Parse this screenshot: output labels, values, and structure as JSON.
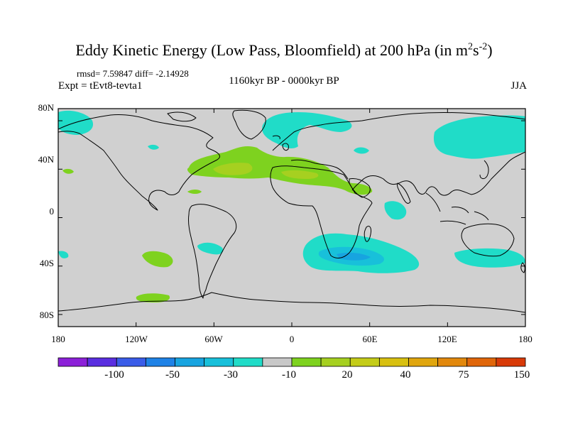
{
  "title": "Eddy Kinetic Energy (Low Pass, Bloomfield) at 200 hPa (in m",
  "title_units": {
    "sup1": "2",
    "mid": "s",
    "sup2": "-2",
    "close": ")"
  },
  "stats": "rmsd= 7.59847 diff= -2.14928",
  "experiment": "Expt = tEvt8-tevta1",
  "period": "1160kyr BP - 0000kyr BP",
  "season": "JJA",
  "map": {
    "projection": "cylindrical equidistant",
    "lat_range": [
      -90,
      90
    ],
    "lon_range": [
      -180,
      180
    ],
    "background_color": "#d0d0d0",
    "lat_labels": [
      "80N",
      "40N",
      "0",
      "40S",
      "80S"
    ],
    "lon_labels": [
      "180",
      "120W",
      "60W",
      "0",
      "60E",
      "120E",
      "180"
    ]
  },
  "colorbar": {
    "colors": [
      "#8c20d8",
      "#5a2ee0",
      "#3a5ce8",
      "#1e82e6",
      "#17a4e0",
      "#18c0da",
      "#20dcc8",
      "#c8c8c8",
      "#7ed21f",
      "#a6d020",
      "#c4cc18",
      "#d8c010",
      "#e0a60e",
      "#e2880c",
      "#e0660a",
      "#d83a08"
    ],
    "labels": [
      "-100",
      "-50",
      "-30",
      "-10",
      "20",
      "40",
      "75",
      "150"
    ]
  }
}
